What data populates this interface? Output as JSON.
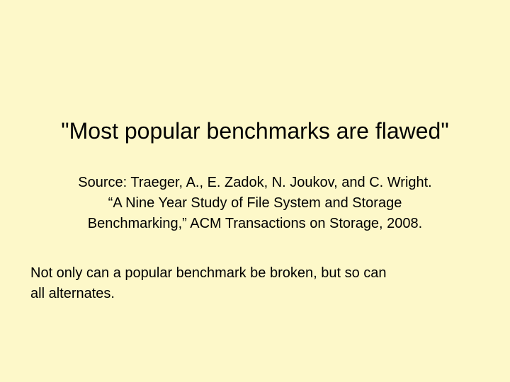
{
  "slide": {
    "background_color": "#fdf8c9",
    "title": "\"Most popular benchmarks are flawed\"",
    "source_lines": [
      "Source: Traeger, A., E. Zadok, N. Joukov, and C. Wright.",
      "“A Nine Year Study of File System and Storage",
      "Benchmarking,” ACM Transactions on Storage, 2008."
    ],
    "note_lines": [
      "Not only can a popular benchmark be broken, but so can",
      "all alternates."
    ]
  }
}
